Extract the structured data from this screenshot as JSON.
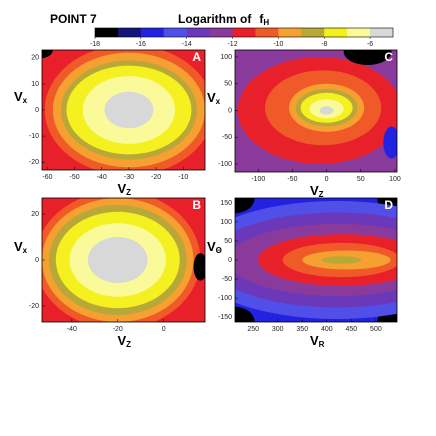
{
  "title": "POINT 7",
  "colorbar": {
    "title": "Logarithm of",
    "symbol": "f",
    "symbol_sub": "H",
    "lim": [
      -18,
      -5
    ],
    "ticks": [
      -18,
      -16,
      -14,
      -12,
      -10,
      -8,
      -6
    ],
    "colors": [
      "#000000",
      "#16167a",
      "#2222e0",
      "#5050e8",
      "#6a38b8",
      "#8a3a9a",
      "#e8202a",
      "#f05a28",
      "#f5a030",
      "#b8a838",
      "#f5f020",
      "#fafa9a",
      "#d8d8d8"
    ]
  },
  "chart_data": [
    {
      "type": "contour",
      "label": "A",
      "xlabel": "V",
      "xlabel_sub": "Z",
      "ylabel": "V",
      "ylabel_sub": "x",
      "xlim": [
        -62,
        -2
      ],
      "xticks": [
        -60,
        -50,
        -40,
        -30,
        -20,
        -10
      ],
      "ylim": [
        -23,
        23
      ],
      "yticks": [
        -20,
        -10,
        0,
        10,
        20
      ],
      "background_level": -12,
      "contours": [
        {
          "level": -18,
          "cx": -62,
          "cy": 23,
          "rx": 4,
          "ry": 3
        },
        {
          "level": -11,
          "cx": -30,
          "cy": 0,
          "rx": 31,
          "ry": 25
        },
        {
          "level": -10,
          "cx": -30,
          "cy": 0,
          "rx": 28,
          "ry": 22
        },
        {
          "level": -9,
          "cx": -30,
          "cy": 0,
          "rx": 25,
          "ry": 19
        },
        {
          "level": -8,
          "cx": -30,
          "cy": 0,
          "rx": 23,
          "ry": 17
        },
        {
          "level": -7,
          "cx": -30,
          "cy": 0,
          "rx": 17,
          "ry": 13
        },
        {
          "level": -6,
          "cx": -30,
          "cy": 0,
          "rx": 9,
          "ry": 7
        }
      ]
    },
    {
      "type": "contour",
      "label": "C",
      "xlabel": "V",
      "xlabel_sub": "Z",
      "ylabel": "V",
      "ylabel_sub": "x",
      "xlim": [
        -134,
        103
      ],
      "xticks": [
        -100,
        -50,
        0,
        50,
        100
      ],
      "ylim": [
        -115,
        113
      ],
      "yticks": [
        -100,
        -50,
        0,
        50,
        100
      ],
      "background_level": -13,
      "contours": [
        {
          "level": -12,
          "cx": -10,
          "cy": 0,
          "rx": 120,
          "ry": 100
        },
        {
          "level": -18,
          "cx": 60,
          "cy": 110,
          "rx": 35,
          "ry": 25
        },
        {
          "level": -16,
          "cx": 95,
          "cy": -60,
          "rx": 12,
          "ry": 30
        },
        {
          "level": -11,
          "cx": -5,
          "cy": 5,
          "rx": 85,
          "ry": 70
        },
        {
          "level": -10,
          "cx": 0,
          "cy": 5,
          "rx": 55,
          "ry": 45
        },
        {
          "level": -9,
          "cx": 0,
          "cy": 5,
          "rx": 45,
          "ry": 35
        },
        {
          "level": -8,
          "cx": 0,
          "cy": 5,
          "rx": 38,
          "ry": 28
        },
        {
          "level": -7,
          "cx": 0,
          "cy": 3,
          "rx": 25,
          "ry": 18
        },
        {
          "level": -6,
          "cx": 0,
          "cy": 0,
          "rx": 10,
          "ry": 8
        }
      ]
    },
    {
      "type": "contour",
      "label": "B",
      "xlabel": "V",
      "xlabel_sub": "Z",
      "ylabel": "V",
      "ylabel_sub": "x",
      "xlim": [
        -53,
        18
      ],
      "xticks": [
        -40,
        -20,
        0
      ],
      "ylim": [
        -27,
        27
      ],
      "yticks": [
        -20,
        0,
        20
      ],
      "background_level": -12,
      "contours": [
        {
          "level": -11,
          "cx": -20,
          "cy": 0,
          "rx": 36,
          "ry": 30
        },
        {
          "level": -10,
          "cx": -20,
          "cy": 0,
          "rx": 33,
          "ry": 27
        },
        {
          "level": -9,
          "cx": -20,
          "cy": 0,
          "rx": 30,
          "ry": 24
        },
        {
          "level": -8,
          "cx": -20,
          "cy": 0,
          "rx": 27,
          "ry": 21
        },
        {
          "level": -7,
          "cx": -20,
          "cy": 0,
          "rx": 21,
          "ry": 16
        },
        {
          "level": -6,
          "cx": -20,
          "cy": 0,
          "rx": 13,
          "ry": 10
        },
        {
          "level": -18,
          "cx": 16,
          "cy": -3,
          "rx": 3,
          "ry": 6
        }
      ]
    },
    {
      "type": "contour",
      "label": "D",
      "xlabel": "V",
      "xlabel_sub": "R",
      "ylabel": "V",
      "ylabel_sub": "Θ",
      "xlim": [
        213,
        543
      ],
      "xticks": [
        250,
        300,
        350,
        400,
        450,
        500
      ],
      "ylim": [
        -163,
        163
      ],
      "yticks": [
        -150,
        -100,
        -50,
        0,
        50,
        100,
        150
      ],
      "background_level": -16,
      "contours": [
        {
          "level": -18,
          "cx": 213,
          "cy": 163,
          "rx": 40,
          "ry": 40
        },
        {
          "level": -18,
          "cx": 213,
          "cy": -163,
          "rx": 40,
          "ry": 40
        },
        {
          "level": -18,
          "cx": 543,
          "cy": 163,
          "rx": 40,
          "ry": 50
        },
        {
          "level": -18,
          "cx": 543,
          "cy": -163,
          "rx": 40,
          "ry": 50
        },
        {
          "level": -15,
          "cx": 420,
          "cy": 0,
          "rx": 300,
          "ry": 155
        },
        {
          "level": -14,
          "cx": 420,
          "cy": 0,
          "rx": 260,
          "ry": 125
        },
        {
          "level": -13,
          "cx": 420,
          "cy": 0,
          "rx": 220,
          "ry": 95
        },
        {
          "level": -12,
          "cx": 430,
          "cy": 0,
          "rx": 170,
          "ry": 68
        },
        {
          "level": -11,
          "cx": 430,
          "cy": 0,
          "rx": 120,
          "ry": 45
        },
        {
          "level": -10,
          "cx": 440,
          "cy": 0,
          "rx": 90,
          "ry": 25
        },
        {
          "level": -9,
          "cx": 430,
          "cy": 0,
          "rx": 40,
          "ry": 10
        }
      ]
    }
  ]
}
